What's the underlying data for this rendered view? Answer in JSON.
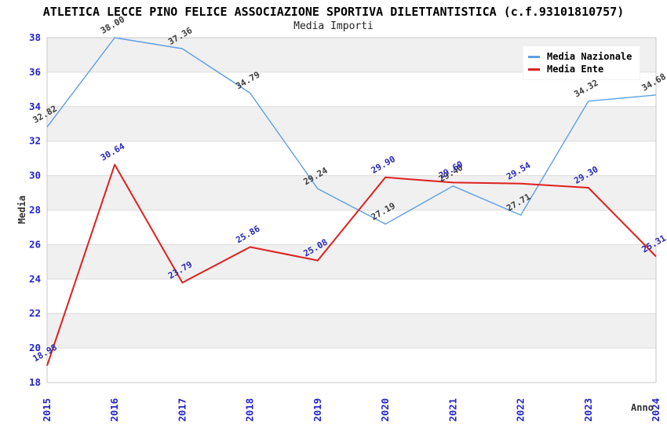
{
  "header": {
    "title": "ATLETICA LECCE PINO FELICE ASSOCIAZIONE SPORTIVA DILETTANTISTICA (c.f.93101810757)",
    "subtitle": "Media Importi"
  },
  "legend": {
    "items": [
      {
        "label": "Media Nazionale",
        "color": "#5d9fe6"
      },
      {
        "label": "Media Ente",
        "color": "#e02020"
      }
    ]
  },
  "axes": {
    "x_title": "Anno",
    "y_title": "Media",
    "tick_label_color": "#2424cc"
  },
  "chart_data": {
    "type": "line",
    "title": "ATLETICA LECCE PINO FELICE ASSOCIAZIONE SPORTIVA DILETTANTISTICA (c.f.93101810757)",
    "subtitle": "Media Importi",
    "xlabel": "Anno",
    "ylabel": "Media",
    "categories": [
      "2015",
      "2016",
      "2017",
      "2018",
      "2019",
      "2020",
      "2021",
      "2022",
      "2023",
      "2024"
    ],
    "series": [
      {
        "name": "Media Nazionale",
        "color": "#5d9fe6",
        "label_color": "#3c3c3c",
        "line_width": 1.4,
        "values": [
          32.82,
          38.0,
          37.36,
          34.79,
          29.24,
          27.19,
          29.4,
          27.71,
          34.32,
          34.68
        ]
      },
      {
        "name": "Media Ente",
        "color": "#e02020",
        "label_color": "#2828bb",
        "line_width": 2,
        "values": [
          18.98,
          30.64,
          23.79,
          25.86,
          25.08,
          29.9,
          29.6,
          29.54,
          29.3,
          25.31
        ]
      }
    ],
    "ylim": [
      18,
      38
    ],
    "yticks": [
      18,
      20,
      22,
      24,
      26,
      28,
      30,
      32,
      34,
      36,
      38
    ],
    "band_colors": [
      "#ffffff",
      "#f0f0f0"
    ],
    "gridline_color": "#dcdcdc",
    "border_color": "#c8c8c8",
    "grid": "horizontal-bands",
    "legend_position": "top-right",
    "value_label_format": "0.00",
    "value_label_rotation": -30,
    "x_tick_rotation": -90
  }
}
